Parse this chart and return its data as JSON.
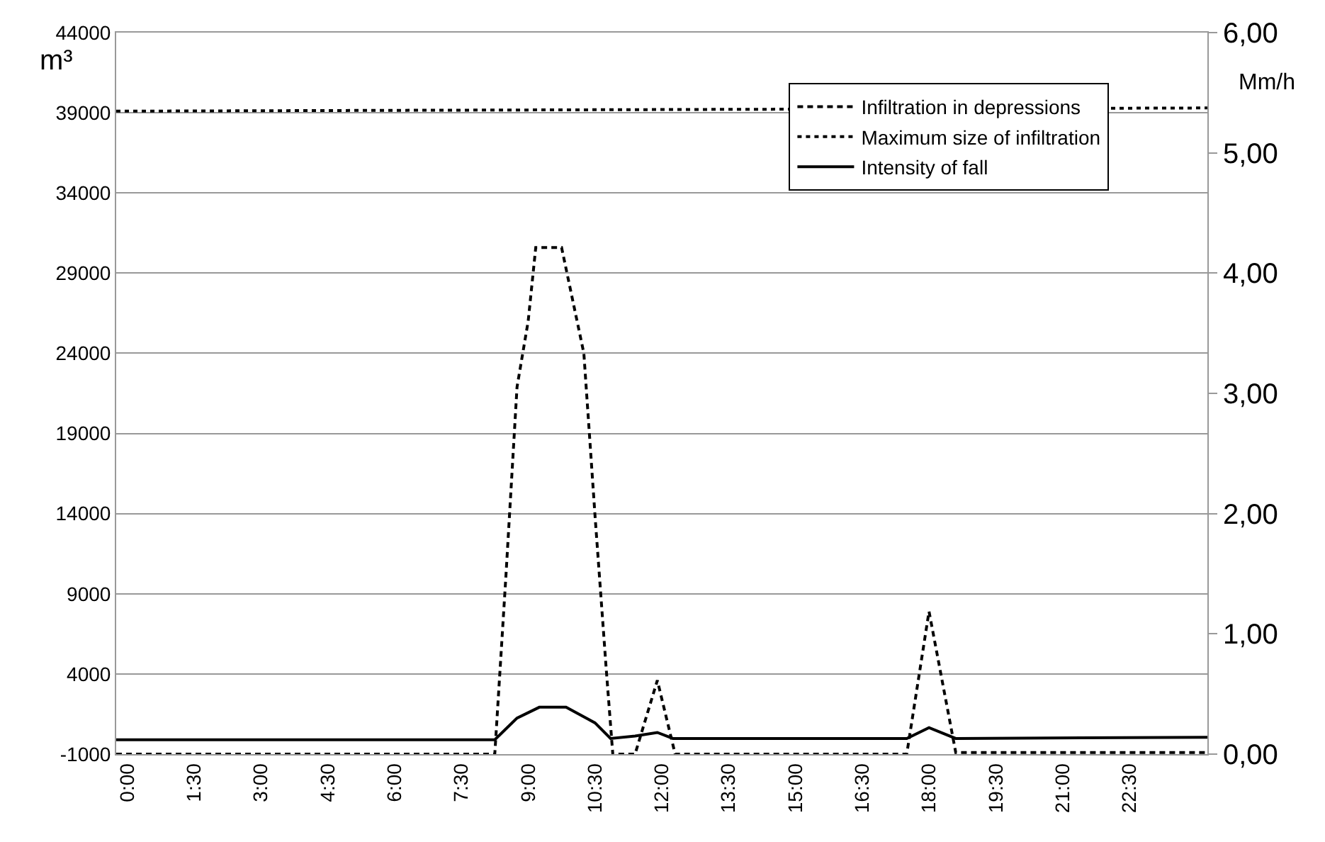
{
  "chart_data": {
    "type": "line",
    "ylabel": "m³",
    "y2label": "Mm/h",
    "grid": "y",
    "legend": "top right",
    "xlim": [
      -0.25,
      24.25
    ],
    "xticks": [
      {
        "value": 0,
        "label": "0:00"
      },
      {
        "value": 1.5,
        "label": "1:30"
      },
      {
        "value": 3,
        "label": "3:00"
      },
      {
        "value": 4.5,
        "label": "4:30"
      },
      {
        "value": 6,
        "label": "6:00"
      },
      {
        "value": 7.5,
        "label": "7:30"
      },
      {
        "value": 9,
        "label": "9:00"
      },
      {
        "value": 10.5,
        "label": "10:30"
      },
      {
        "value": 12,
        "label": "12:00"
      },
      {
        "value": 13.5,
        "label": "13:30"
      },
      {
        "value": 15,
        "label": "15:00"
      },
      {
        "value": 16.5,
        "label": "16:30"
      },
      {
        "value": 18,
        "label": "18:00"
      },
      {
        "value": 19.5,
        "label": "19:30"
      },
      {
        "value": 21,
        "label": "21:00"
      },
      {
        "value": 22.5,
        "label": "22:30"
      }
    ],
    "ylim": [
      -1000,
      44000
    ],
    "yticks": [
      -1000,
      4000,
      9000,
      14000,
      19000,
      24000,
      29000,
      34000,
      39000,
      44000
    ],
    "y2lim": [
      0,
      6
    ],
    "y2ticks": [
      {
        "value": 0,
        "label": "0,00"
      },
      {
        "value": 1,
        "label": "1,00"
      },
      {
        "value": 2,
        "label": "2,00"
      },
      {
        "value": 3,
        "label": "3,00"
      },
      {
        "value": 4,
        "label": "4,00"
      },
      {
        "value": 5,
        "label": "5,00"
      },
      {
        "value": 6,
        "label": "6,00"
      }
    ],
    "series": [
      {
        "name": "Infiltration in depressions",
        "color": "#000000",
        "line_style": "dashed",
        "x": [
          -0.25,
          8.25,
          8.5,
          8.75,
          9.0,
          9.17,
          9.75,
          10.25,
          10.5,
          10.75,
          10.9,
          11.4,
          11.9,
          12.3,
          17.5,
          18.0,
          18.6,
          24.25
        ],
        "values": [
          -1000,
          -1000,
          10100,
          21900,
          26000,
          30600,
          30600,
          24000,
          13900,
          4400,
          -1000,
          -1000,
          3600,
          -1000,
          -1000,
          7900,
          -900,
          -900
        ]
      },
      {
        "name": "Maximum size of infiltration",
        "color": "#000000",
        "line_style": "dotted",
        "x": [
          -0.25,
          24.25
        ],
        "values": [
          39100,
          39300
        ]
      },
      {
        "name": "Intensity of fall",
        "color": "#000000",
        "line_style": "solid",
        "axis": "y2",
        "x": [
          -0.25,
          8.25,
          8.75,
          9.25,
          9.85,
          10.5,
          10.85,
          11.4,
          11.9,
          12.25,
          17.5,
          18.0,
          18.6,
          24.25
        ],
        "values": [
          0.12,
          0.12,
          0.3,
          0.39,
          0.39,
          0.26,
          0.13,
          0.15,
          0.18,
          0.13,
          0.13,
          0.22,
          0.13,
          0.14
        ]
      }
    ]
  }
}
